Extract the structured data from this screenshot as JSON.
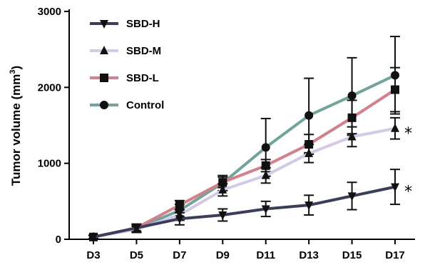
{
  "chart_data": {
    "type": "line",
    "title": "",
    "xlabel": "",
    "ylabel": "Tumor volume (mm",
    "ylabel_superscript": "3",
    "ylabel_close": ")",
    "categories": [
      "D3",
      "D5",
      "D7",
      "D9",
      "D11",
      "D13",
      "D15",
      "D17"
    ],
    "ylim": [
      0,
      3000
    ],
    "yticks": [
      "0",
      "1000",
      "2000",
      "3000"
    ],
    "yticks_values": [
      0,
      1000,
      2000,
      3000
    ],
    "grid": false,
    "legend_position": "top-left",
    "series": [
      {
        "name": "SBD-H",
        "color": "#3a3d5c",
        "marker": "triangle-down",
        "values": [
          30,
          150,
          270,
          320,
          400,
          450,
          570,
          690
        ],
        "errors": [
          25,
          50,
          80,
          80,
          100,
          130,
          180,
          230
        ]
      },
      {
        "name": "SBD-M",
        "color": "#d4c9e6",
        "marker": "triangle-up",
        "values": [
          30,
          130,
          320,
          650,
          840,
          1130,
          1350,
          1460
        ],
        "errors": [
          25,
          40,
          70,
          80,
          100,
          120,
          130,
          140
        ]
      },
      {
        "name": "SBD-L",
        "color": "#d67e8a",
        "marker": "square",
        "values": [
          30,
          150,
          450,
          750,
          970,
          1250,
          1600,
          1970
        ],
        "errors": [
          20,
          50,
          60,
          70,
          80,
          130,
          230,
          290
        ]
      },
      {
        "name": "Control",
        "color": "#6fa59a",
        "marker": "circle",
        "values": [
          30,
          140,
          380,
          740,
          1210,
          1630,
          1890,
          2160
        ],
        "errors": [
          20,
          50,
          80,
          100,
          380,
          490,
          500,
          510
        ]
      }
    ],
    "annotations": [
      {
        "text": "*",
        "series": "SBD-M"
      },
      {
        "text": "*",
        "series": "SBD-H"
      }
    ]
  }
}
